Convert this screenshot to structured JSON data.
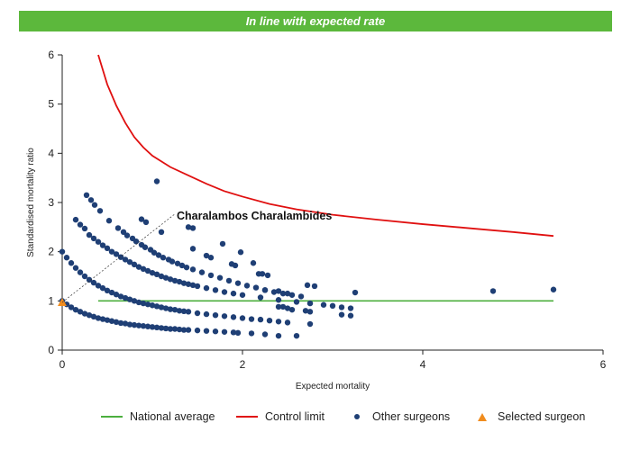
{
  "banner": {
    "text": "In line with expected rate",
    "color": "#5cb83c"
  },
  "chart_data": {
    "type": "scatter",
    "title": "",
    "xlabel": "Expected mortality",
    "ylabel": "Standardised mortality ratio",
    "xlim": [
      0,
      6
    ],
    "ylim": [
      0,
      6
    ],
    "xticks": [
      0,
      2,
      4,
      6
    ],
    "yticks": [
      0,
      1,
      2,
      3,
      4,
      5,
      6
    ],
    "grid": false,
    "legend_position": "bottom",
    "national_average": {
      "name": "National average",
      "y": 1,
      "x_range": [
        0.4,
        5.45
      ],
      "color": "#4caf3e"
    },
    "control_limit": {
      "name": "Control limit",
      "color": "#e01010",
      "points": [
        [
          0.4,
          6.0
        ],
        [
          0.5,
          5.4
        ],
        [
          0.6,
          4.97
        ],
        [
          0.7,
          4.62
        ],
        [
          0.8,
          4.33
        ],
        [
          0.9,
          4.12
        ],
        [
          1.0,
          3.95
        ],
        [
          1.2,
          3.72
        ],
        [
          1.4,
          3.55
        ],
        [
          1.6,
          3.38
        ],
        [
          1.8,
          3.23
        ],
        [
          2.0,
          3.12
        ],
        [
          2.3,
          2.97
        ],
        [
          2.6,
          2.86
        ],
        [
          3.0,
          2.75
        ],
        [
          3.5,
          2.65
        ],
        [
          4.0,
          2.56
        ],
        [
          4.5,
          2.48
        ],
        [
          5.0,
          2.4
        ],
        [
          5.45,
          2.32
        ]
      ]
    },
    "series": [
      {
        "name": "Other surgeons",
        "color": "#1f3f75",
        "points": [
          [
            0.0,
            1.0
          ],
          [
            0.05,
            0.93
          ],
          [
            0.1,
            0.87
          ],
          [
            0.15,
            0.82
          ],
          [
            0.2,
            0.78
          ],
          [
            0.25,
            0.74
          ],
          [
            0.3,
            0.71
          ],
          [
            0.35,
            0.68
          ],
          [
            0.4,
            0.65
          ],
          [
            0.45,
            0.63
          ],
          [
            0.5,
            0.61
          ],
          [
            0.55,
            0.59
          ],
          [
            0.6,
            0.57
          ],
          [
            0.65,
            0.55
          ],
          [
            0.7,
            0.54
          ],
          [
            0.75,
            0.52
          ],
          [
            0.8,
            0.51
          ],
          [
            0.85,
            0.5
          ],
          [
            0.9,
            0.49
          ],
          [
            0.95,
            0.48
          ],
          [
            1.0,
            0.47
          ],
          [
            1.05,
            0.46
          ],
          [
            1.1,
            0.45
          ],
          [
            1.15,
            0.44
          ],
          [
            1.2,
            0.43
          ],
          [
            1.25,
            0.43
          ],
          [
            1.3,
            0.42
          ],
          [
            1.35,
            0.41
          ],
          [
            1.4,
            0.41
          ],
          [
            1.5,
            0.4
          ],
          [
            1.6,
            0.39
          ],
          [
            1.7,
            0.38
          ],
          [
            1.8,
            0.37
          ],
          [
            1.9,
            0.36
          ],
          [
            1.95,
            0.35
          ],
          [
            2.1,
            0.34
          ],
          [
            2.25,
            0.32
          ],
          [
            2.4,
            0.29
          ],
          [
            2.6,
            0.29
          ],
          [
            0.0,
            2.0
          ],
          [
            0.05,
            1.88
          ],
          [
            0.1,
            1.77
          ],
          [
            0.15,
            1.67
          ],
          [
            0.2,
            1.58
          ],
          [
            0.25,
            1.5
          ],
          [
            0.3,
            1.43
          ],
          [
            0.35,
            1.37
          ],
          [
            0.4,
            1.31
          ],
          [
            0.45,
            1.26
          ],
          [
            0.5,
            1.21
          ],
          [
            0.55,
            1.17
          ],
          [
            0.6,
            1.13
          ],
          [
            0.65,
            1.09
          ],
          [
            0.7,
            1.06
          ],
          [
            0.75,
            1.03
          ],
          [
            0.8,
            1.0
          ],
          [
            0.85,
            0.97
          ],
          [
            0.9,
            0.95
          ],
          [
            0.95,
            0.93
          ],
          [
            1.0,
            0.91
          ],
          [
            1.05,
            0.89
          ],
          [
            1.1,
            0.87
          ],
          [
            1.15,
            0.85
          ],
          [
            1.2,
            0.83
          ],
          [
            1.25,
            0.82
          ],
          [
            1.3,
            0.8
          ],
          [
            1.35,
            0.79
          ],
          [
            1.4,
            0.78
          ],
          [
            1.5,
            0.75
          ],
          [
            1.6,
            0.73
          ],
          [
            1.7,
            0.71
          ],
          [
            1.8,
            0.69
          ],
          [
            1.9,
            0.67
          ],
          [
            2.0,
            0.65
          ],
          [
            2.1,
            0.63
          ],
          [
            2.2,
            0.62
          ],
          [
            2.3,
            0.6
          ],
          [
            2.4,
            0.58
          ],
          [
            2.5,
            0.56
          ],
          [
            2.75,
            0.53
          ],
          [
            0.15,
            2.65
          ],
          [
            0.2,
            2.55
          ],
          [
            0.25,
            2.47
          ],
          [
            0.3,
            2.34
          ],
          [
            0.35,
            2.27
          ],
          [
            0.4,
            2.2
          ],
          [
            0.45,
            2.13
          ],
          [
            0.5,
            2.07
          ],
          [
            0.55,
            2.0
          ],
          [
            0.6,
            1.95
          ],
          [
            0.65,
            1.89
          ],
          [
            0.7,
            1.84
          ],
          [
            0.75,
            1.79
          ],
          [
            0.8,
            1.74
          ],
          [
            0.85,
            1.69
          ],
          [
            0.9,
            1.65
          ],
          [
            0.95,
            1.61
          ],
          [
            1.0,
            1.57
          ],
          [
            1.05,
            1.54
          ],
          [
            1.1,
            1.5
          ],
          [
            1.15,
            1.47
          ],
          [
            1.2,
            1.44
          ],
          [
            1.25,
            1.41
          ],
          [
            1.3,
            1.39
          ],
          [
            1.35,
            1.36
          ],
          [
            1.4,
            1.34
          ],
          [
            1.45,
            1.32
          ],
          [
            1.5,
            1.3
          ],
          [
            1.6,
            1.26
          ],
          [
            1.7,
            1.22
          ],
          [
            1.8,
            1.18
          ],
          [
            1.9,
            1.15
          ],
          [
            2.0,
            1.12
          ],
          [
            2.2,
            1.07
          ],
          [
            2.4,
            1.02
          ],
          [
            2.6,
            0.98
          ],
          [
            2.75,
            0.95
          ],
          [
            2.9,
            0.92
          ],
          [
            3.0,
            0.9
          ],
          [
            3.1,
            0.87
          ],
          [
            3.2,
            0.85
          ],
          [
            0.27,
            3.15
          ],
          [
            0.32,
            3.05
          ],
          [
            0.36,
            2.95
          ],
          [
            0.42,
            2.83
          ],
          [
            0.52,
            2.63
          ],
          [
            0.62,
            2.48
          ],
          [
            0.68,
            2.4
          ],
          [
            0.72,
            2.33
          ],
          [
            0.78,
            2.27
          ],
          [
            0.82,
            2.21
          ],
          [
            0.88,
            2.14
          ],
          [
            0.92,
            2.09
          ],
          [
            0.98,
            2.04
          ],
          [
            1.02,
            1.98
          ],
          [
            1.07,
            1.93
          ],
          [
            1.12,
            1.88
          ],
          [
            1.18,
            1.84
          ],
          [
            1.22,
            1.8
          ],
          [
            1.28,
            1.76
          ],
          [
            1.33,
            1.72
          ],
          [
            1.38,
            1.68
          ],
          [
            1.45,
            1.64
          ],
          [
            1.55,
            1.58
          ],
          [
            1.65,
            1.52
          ],
          [
            1.75,
            1.47
          ],
          [
            1.85,
            1.41
          ],
          [
            1.95,
            1.36
          ],
          [
            2.05,
            1.31
          ],
          [
            2.15,
            1.27
          ],
          [
            2.25,
            1.22
          ],
          [
            2.35,
            1.18
          ],
          [
            2.45,
            1.15
          ],
          [
            2.55,
            1.12
          ],
          [
            2.65,
            1.09
          ],
          [
            0.88,
            2.66
          ],
          [
            0.93,
            2.6
          ],
          [
            1.05,
            3.43
          ],
          [
            1.1,
            2.4
          ],
          [
            1.4,
            2.5
          ],
          [
            1.45,
            2.48
          ],
          [
            1.45,
            2.06
          ],
          [
            1.78,
            2.16
          ],
          [
            1.6,
            1.92
          ],
          [
            1.65,
            1.88
          ],
          [
            1.88,
            1.75
          ],
          [
            1.92,
            1.72
          ],
          [
            1.98,
            1.99
          ],
          [
            2.12,
            1.77
          ],
          [
            2.18,
            1.55
          ],
          [
            2.22,
            1.55
          ],
          [
            2.28,
            1.52
          ],
          [
            2.25,
            1.22
          ],
          [
            2.4,
            1.2
          ],
          [
            2.5,
            1.15
          ],
          [
            2.4,
            0.88
          ],
          [
            2.45,
            0.88
          ],
          [
            2.5,
            0.85
          ],
          [
            2.55,
            0.82
          ],
          [
            2.72,
            1.32
          ],
          [
            2.8,
            1.3
          ],
          [
            2.7,
            0.8
          ],
          [
            2.75,
            0.78
          ],
          [
            3.25,
            1.17
          ],
          [
            3.1,
            0.72
          ],
          [
            3.2,
            0.7
          ],
          [
            4.78,
            1.2
          ],
          [
            5.45,
            1.23
          ]
        ]
      },
      {
        "name": "Selected surgeon",
        "color": "#f08c1e",
        "points": [
          [
            0.0,
            0.97
          ]
        ]
      }
    ],
    "annotations": [
      {
        "text": "Charalambos Charalambides",
        "x": 1.27,
        "y": 2.73,
        "points_to": [
          0.0,
          0.97
        ]
      }
    ]
  }
}
